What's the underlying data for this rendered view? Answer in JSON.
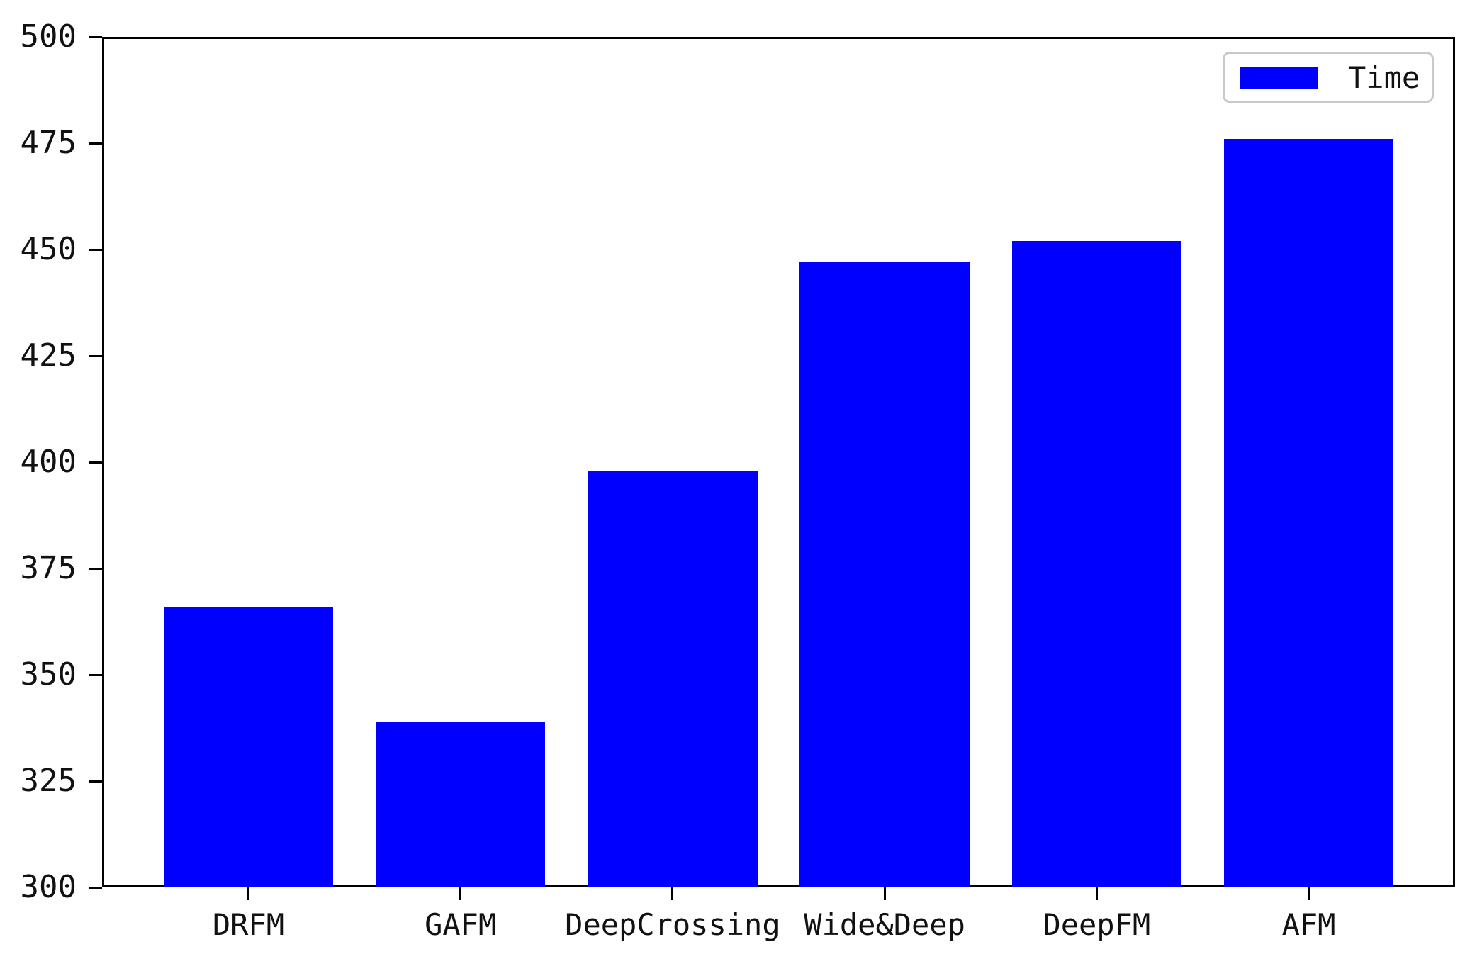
{
  "chart_data": {
    "type": "bar",
    "title": "",
    "xlabel": "",
    "ylabel": "",
    "categories": [
      "DRFM",
      "GAFM",
      "DeepCrossing",
      "Wide&Deep",
      "DeepFM",
      "AFM"
    ],
    "series": [
      {
        "name": "Time",
        "values": [
          366,
          339,
          398,
          447,
          452,
          476
        ]
      }
    ],
    "ylim": [
      300,
      500
    ],
    "yticks": [
      300,
      325,
      350,
      375,
      400,
      425,
      450,
      475,
      500
    ],
    "xlim_units": [
      -0.69,
      5.69
    ],
    "bar_width_units": 0.8,
    "grid": false,
    "legend": {
      "label": "Time",
      "position": "upper right"
    }
  },
  "colors": {
    "bar": "#0000ff",
    "axis": "#000000",
    "text": "#111111",
    "legend_border": "#c9c9c9",
    "background": "#ffffff"
  }
}
